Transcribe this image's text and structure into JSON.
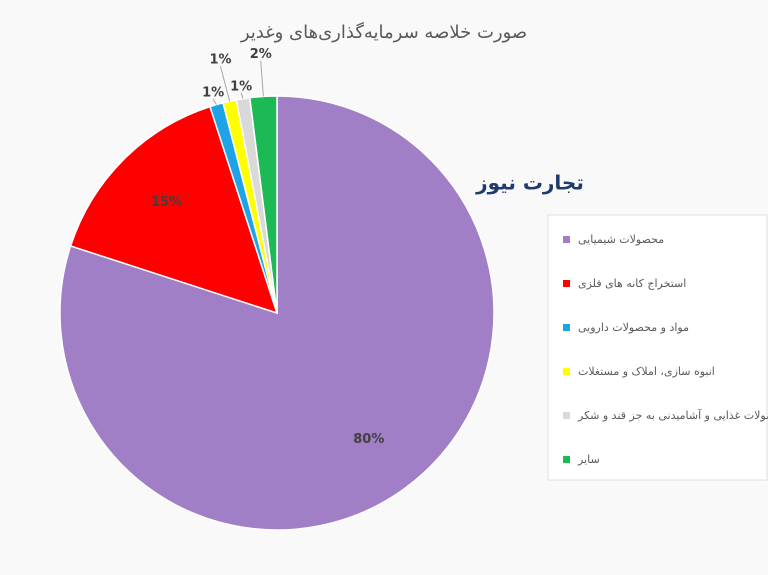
{
  "chart_data": {
    "type": "pie",
    "title": "صورت خلاصه سرمایه‌گذاری‌های وغدیر",
    "watermark": "تجارت نیوز",
    "categories": [
      "محصولات شیمیایی",
      "استخراج کانه های فلزی",
      "مواد و محصولات دارویی",
      "انبوه سازی، املاک و مستغلات",
      "محصولات غذایی و آشامیدنی به جز قند و شکر",
      "سایر"
    ],
    "values": [
      80,
      15,
      1,
      1,
      1,
      2
    ],
    "value_labels": [
      "80%",
      "15%",
      "1%",
      "1%",
      "1%",
      "2%"
    ],
    "colors": [
      "#a07fc6",
      "#ff0000",
      "#1ea4e6",
      "#ffff00",
      "#d9d9d9",
      "#1db954"
    ],
    "legend": "right"
  }
}
